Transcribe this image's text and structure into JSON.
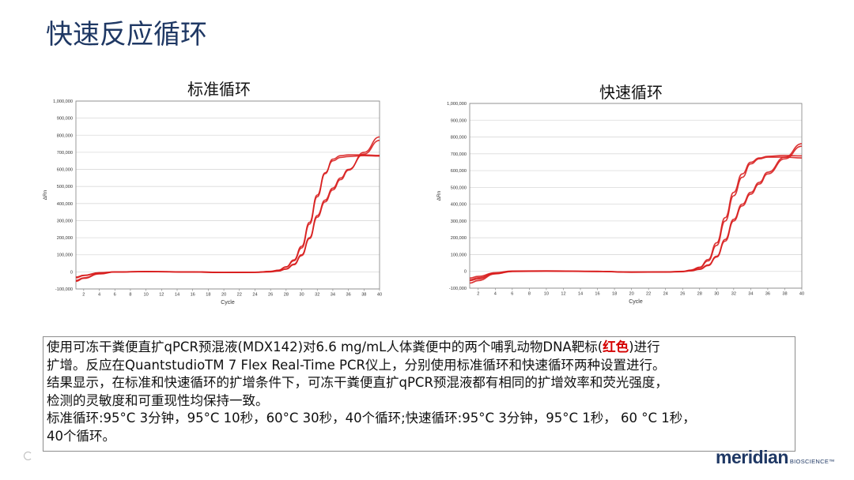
{
  "slide": {
    "title": "快速反应循环"
  },
  "chart_data": [
    {
      "type": "line",
      "title": "标准循环",
      "xlabel": "Cycle",
      "ylabel": "ΔRn",
      "xlim": [
        1,
        40
      ],
      "ylim": [
        -100000,
        1000000
      ],
      "x_ticks": [
        2,
        4,
        6,
        8,
        10,
        12,
        14,
        16,
        18,
        20,
        22,
        24,
        26,
        28,
        30,
        32,
        34,
        36,
        38,
        40
      ],
      "y_tick_labels": [
        "1,000,000",
        "900,000",
        "800,000",
        "700,000",
        "600,000",
        "500,000",
        "400,000",
        "300,000",
        "200,000",
        "100,000",
        "0",
        "-100,000"
      ],
      "grid": "horizontal",
      "line_color": "#d81e1e",
      "series": [
        {
          "x": [
            1,
            2,
            4,
            6,
            10,
            16,
            20,
            24,
            26,
            27,
            28,
            29,
            30,
            31,
            32,
            33,
            34,
            35,
            36,
            38,
            40
          ],
          "y": [
            -30000,
            -20000,
            -5000,
            0,
            2000,
            0,
            -3000,
            -2000,
            3000,
            10000,
            30000,
            70000,
            150000,
            290000,
            450000,
            580000,
            650000,
            670000,
            675000,
            680000,
            678000
          ]
        },
        {
          "x": [
            1,
            2,
            4,
            6,
            10,
            16,
            20,
            24,
            26,
            27,
            28,
            29,
            30,
            31,
            32,
            33,
            34,
            35,
            36,
            38,
            40
          ],
          "y": [
            -35000,
            -22000,
            -6000,
            -1000,
            1000,
            -1000,
            -4000,
            -3000,
            2000,
            9000,
            28000,
            65000,
            140000,
            280000,
            440000,
            575000,
            660000,
            680000,
            685000,
            685000,
            682000
          ]
        },
        {
          "x": [
            1,
            2,
            4,
            6,
            10,
            16,
            20,
            24,
            26,
            27,
            28,
            29,
            30,
            31,
            32,
            33,
            34,
            35,
            36,
            38,
            40
          ],
          "y": [
            -50000,
            -35000,
            -10000,
            0,
            2000,
            0,
            -3000,
            -2000,
            1000,
            6000,
            18000,
            45000,
            100000,
            200000,
            330000,
            420000,
            490000,
            550000,
            600000,
            690000,
            770000
          ]
        },
        {
          "x": [
            1,
            2,
            4,
            6,
            10,
            16,
            20,
            24,
            26,
            27,
            28,
            29,
            30,
            31,
            32,
            33,
            34,
            35,
            36,
            38,
            40
          ],
          "y": [
            -55000,
            -38000,
            -12000,
            -1000,
            1000,
            -1000,
            -4000,
            -3000,
            0,
            5000,
            16000,
            42000,
            95000,
            195000,
            320000,
            410000,
            480000,
            540000,
            595000,
            700000,
            790000
          ]
        }
      ]
    },
    {
      "type": "line",
      "title": "快速循环",
      "xlabel": "Cycle",
      "ylabel": "ΔRn",
      "xlim": [
        1,
        40
      ],
      "ylim": [
        -100000,
        1000000
      ],
      "x_ticks": [
        2,
        4,
        6,
        8,
        10,
        12,
        14,
        16,
        18,
        20,
        22,
        24,
        26,
        28,
        30,
        32,
        34,
        36,
        38,
        40
      ],
      "y_tick_labels": [
        "1,000,000",
        "900,000",
        "800,000",
        "700,000",
        "600,000",
        "500,000",
        "400,000",
        "300,000",
        "200,000",
        "100,000",
        "0",
        "-100,000"
      ],
      "grid": "horizontal",
      "line_color": "#d81e1e",
      "series": [
        {
          "x": [
            1,
            2,
            4,
            6,
            10,
            16,
            20,
            24,
            26,
            27,
            28,
            29,
            30,
            31,
            32,
            33,
            34,
            35,
            36,
            38,
            40
          ],
          "y": [
            -40000,
            -30000,
            -8000,
            2000,
            3000,
            0,
            -4000,
            -3000,
            0,
            8000,
            25000,
            70000,
            170000,
            320000,
            470000,
            580000,
            650000,
            675000,
            685000,
            690000,
            688000
          ]
        },
        {
          "x": [
            1,
            2,
            4,
            6,
            10,
            16,
            20,
            24,
            26,
            27,
            28,
            29,
            30,
            31,
            32,
            33,
            34,
            35,
            36,
            38,
            40
          ],
          "y": [
            -50000,
            -38000,
            -10000,
            1000,
            2000,
            -1000,
            -5000,
            -4000,
            -1000,
            6000,
            22000,
            62000,
            155000,
            300000,
            450000,
            560000,
            640000,
            670000,
            680000,
            680000,
            675000
          ]
        },
        {
          "x": [
            1,
            2,
            4,
            6,
            10,
            16,
            20,
            24,
            26,
            27,
            28,
            29,
            30,
            31,
            32,
            33,
            34,
            35,
            36,
            38,
            40
          ],
          "y": [
            -55000,
            -45000,
            -12000,
            0,
            2000,
            0,
            -4000,
            -3000,
            -1000,
            4000,
            14000,
            38000,
            90000,
            190000,
            310000,
            400000,
            470000,
            530000,
            590000,
            680000,
            760000
          ]
        },
        {
          "x": [
            1,
            2,
            4,
            6,
            10,
            16,
            20,
            24,
            26,
            27,
            28,
            29,
            30,
            31,
            32,
            33,
            34,
            35,
            36,
            38,
            40
          ],
          "y": [
            -70000,
            -55000,
            -15000,
            -1000,
            1000,
            -1000,
            -5000,
            -4000,
            -2000,
            3000,
            12000,
            34000,
            85000,
            180000,
            300000,
            390000,
            460000,
            520000,
            580000,
            670000,
            745000
          ]
        }
      ]
    }
  ],
  "caption": {
    "line1_a": "使用可冻干粪便直扩qPCR预混液(MDX142)对6.6 mg/mL人体粪便中的两个哺乳动物DNA靶标(",
    "line1_hl": "红色",
    "line1_b": ")进行",
    "line2": "扩增。反应在QuantstudioTM 7 Flex Real-Time PCR仪上，分别使用标准循环和快速循环两种设置进行。",
    "line3": "结果显示，在标准和快速循环的扩增条件下，可冻干粪便直扩qPCR预混液都有相同的扩增效率和荧光强度，",
    "line4": "检测的灵敏度和可重现性均保持一致。",
    "line5": "标准循环:95°C 3分钟，95°C 10秒，60°C 30秒，40个循环;快速循环:95°C 3分钟，95°C 1秒， 60 °C 1秒，",
    "line6": "40个循环。"
  },
  "logo": {
    "word": "meridian",
    "sub": "BIOSCIENCE™"
  }
}
